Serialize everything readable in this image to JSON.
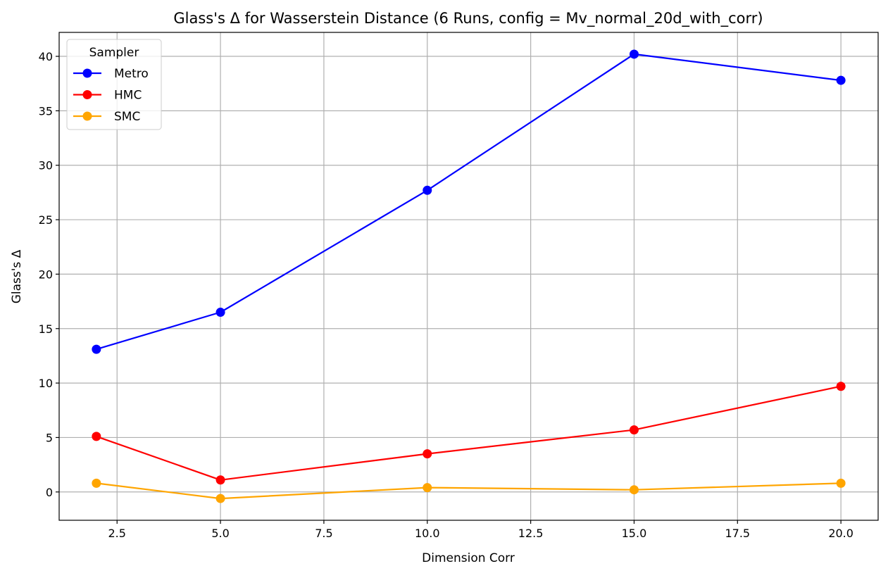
{
  "chart_data": {
    "type": "line",
    "title": "Glass's Δ for Wasserstein Distance (6 Runs, config = Mv_normal_20d_with_corr)",
    "xlabel": "Dimension Corr",
    "ylabel": "Glass's Δ",
    "x": [
      2,
      5,
      10,
      15,
      20
    ],
    "xlim": [
      1.1,
      20.9
    ],
    "ylim": [
      -2.6,
      42.2
    ],
    "xticks": [
      2.5,
      5.0,
      7.5,
      10.0,
      12.5,
      15.0,
      17.5,
      20.0
    ],
    "xtick_labels": [
      "2.5",
      "5.0",
      "7.5",
      "10.0",
      "12.5",
      "15.0",
      "17.5",
      "20.0"
    ],
    "yticks": [
      0,
      5,
      10,
      15,
      20,
      25,
      30,
      35,
      40
    ],
    "ytick_labels": [
      "0",
      "5",
      "10",
      "15",
      "20",
      "25",
      "30",
      "35",
      "40"
    ],
    "grid": true,
    "legend": {
      "title": "Sampler",
      "placement": "top-left"
    },
    "series": [
      {
        "name": "Metro",
        "color": "#0000ff",
        "marker": "circle",
        "values": [
          13.1,
          16.5,
          27.7,
          40.2,
          37.8
        ]
      },
      {
        "name": "HMC",
        "color": "#ff0000",
        "marker": "circle",
        "values": [
          5.1,
          1.1,
          3.5,
          5.7,
          9.7
        ]
      },
      {
        "name": "SMC",
        "color": "#ffa500",
        "marker": "circle",
        "values": [
          0.8,
          -0.6,
          0.4,
          0.2,
          0.8
        ]
      }
    ]
  }
}
